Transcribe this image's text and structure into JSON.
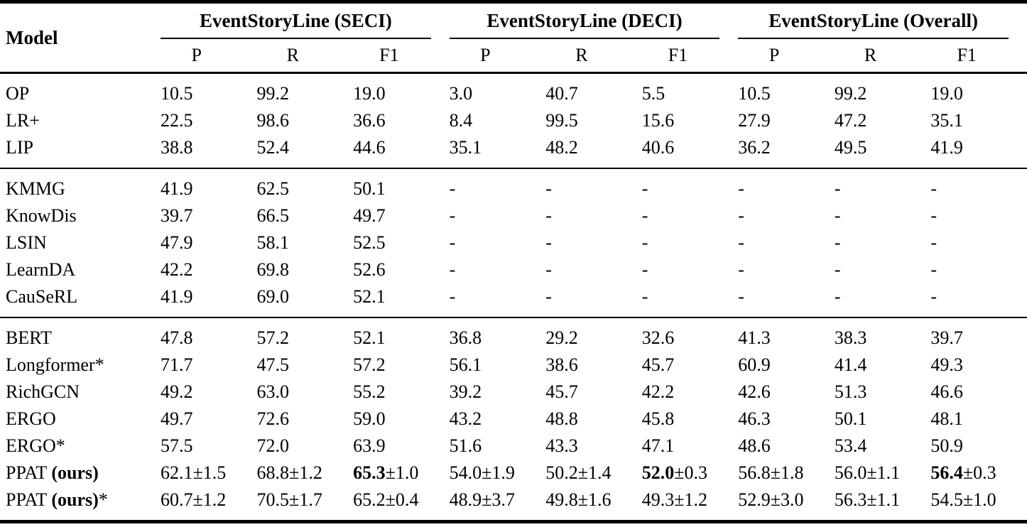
{
  "table": {
    "model_header": "Model",
    "groups": [
      {
        "label": "EventStoryLine (SECI)"
      },
      {
        "label": "EventStoryLine (DECI)"
      },
      {
        "label": "EventStoryLine (Overall)"
      }
    ],
    "metric_headers": [
      "P",
      "R",
      "F1"
    ],
    "sections": [
      {
        "rows": [
          {
            "model": "OP",
            "cells": [
              "10.5",
              "99.2",
              "19.0",
              "3.0",
              "40.7",
              "5.5",
              "10.5",
              "99.2",
              "19.0"
            ]
          },
          {
            "model": "LR+",
            "cells": [
              "22.5",
              "98.6",
              "36.6",
              "8.4",
              "99.5",
              "15.6",
              "27.9",
              "47.2",
              "35.1"
            ]
          },
          {
            "model": "LIP",
            "cells": [
              "38.8",
              "52.4",
              "44.6",
              "35.1",
              "48.2",
              "40.6",
              "36.2",
              "49.5",
              "41.9"
            ]
          }
        ]
      },
      {
        "rows": [
          {
            "model": "KMMG",
            "cells": [
              "41.9",
              "62.5",
              "50.1",
              "-",
              "-",
              "-",
              "-",
              "-",
              "-"
            ]
          },
          {
            "model": "KnowDis",
            "cells": [
              "39.7",
              "66.5",
              "49.7",
              "-",
              "-",
              "-",
              "-",
              "-",
              "-"
            ]
          },
          {
            "model": "LSIN",
            "cells": [
              "47.9",
              "58.1",
              "52.5",
              "-",
              "-",
              "-",
              "-",
              "-",
              "-"
            ]
          },
          {
            "model": "LearnDA",
            "cells": [
              "42.2",
              "69.8",
              "52.6",
              "-",
              "-",
              "-",
              "-",
              "-",
              "-"
            ]
          },
          {
            "model": "CauSeRL",
            "cells": [
              "41.9",
              "69.0",
              "52.1",
              "-",
              "-",
              "-",
              "-",
              "-",
              "-"
            ]
          }
        ]
      },
      {
        "rows": [
          {
            "model": "BERT",
            "cells": [
              "47.8",
              "57.2",
              "52.1",
              "36.8",
              "29.2",
              "32.6",
              "41.3",
              "38.3",
              "39.7"
            ]
          },
          {
            "model": "Longformer*",
            "cells": [
              "71.7",
              "47.5",
              "57.2",
              "56.1",
              "38.6",
              "45.7",
              "60.9",
              "41.4",
              "49.3"
            ]
          },
          {
            "model": "RichGCN",
            "cells": [
              "49.2",
              "63.0",
              "55.2",
              "39.2",
              "45.7",
              "42.2",
              "42.6",
              "51.3",
              "46.6"
            ]
          },
          {
            "model": "ERGO",
            "cells": [
              "49.7",
              "72.6",
              "59.0",
              "43.2",
              "48.8",
              "45.8",
              "46.3",
              "50.1",
              "48.1"
            ]
          },
          {
            "model": "ERGO*",
            "cells": [
              "57.5",
              "72.0",
              "63.9",
              "51.6",
              "43.3",
              "47.1",
              "48.6",
              "53.4",
              "50.9"
            ]
          },
          {
            "model": {
              "pre": "PPAT ",
              "bold": "(ours)",
              "post": ""
            },
            "cells": [
              "62.1±1.5",
              "68.8±1.2",
              {
                "main": "65.3",
                "pm": "±1.0",
                "bold": true
              },
              "54.0±1.9",
              "50.2±1.4",
              {
                "main": "52.0",
                "pm": "±0.3",
                "bold": true
              },
              "56.8±1.8",
              "56.0±1.1",
              {
                "main": "56.4",
                "pm": "±0.3",
                "bold": true
              }
            ]
          },
          {
            "model": {
              "pre": "PPAT ",
              "bold": "(ours)",
              "post": "*"
            },
            "cells": [
              "60.7±1.2",
              "70.5±1.7",
              "65.2±0.4",
              "48.9±3.7",
              "49.8±1.6",
              "49.3±1.2",
              "52.9±3.0",
              "56.3±1.1",
              "54.5±1.0"
            ]
          }
        ]
      }
    ]
  }
}
